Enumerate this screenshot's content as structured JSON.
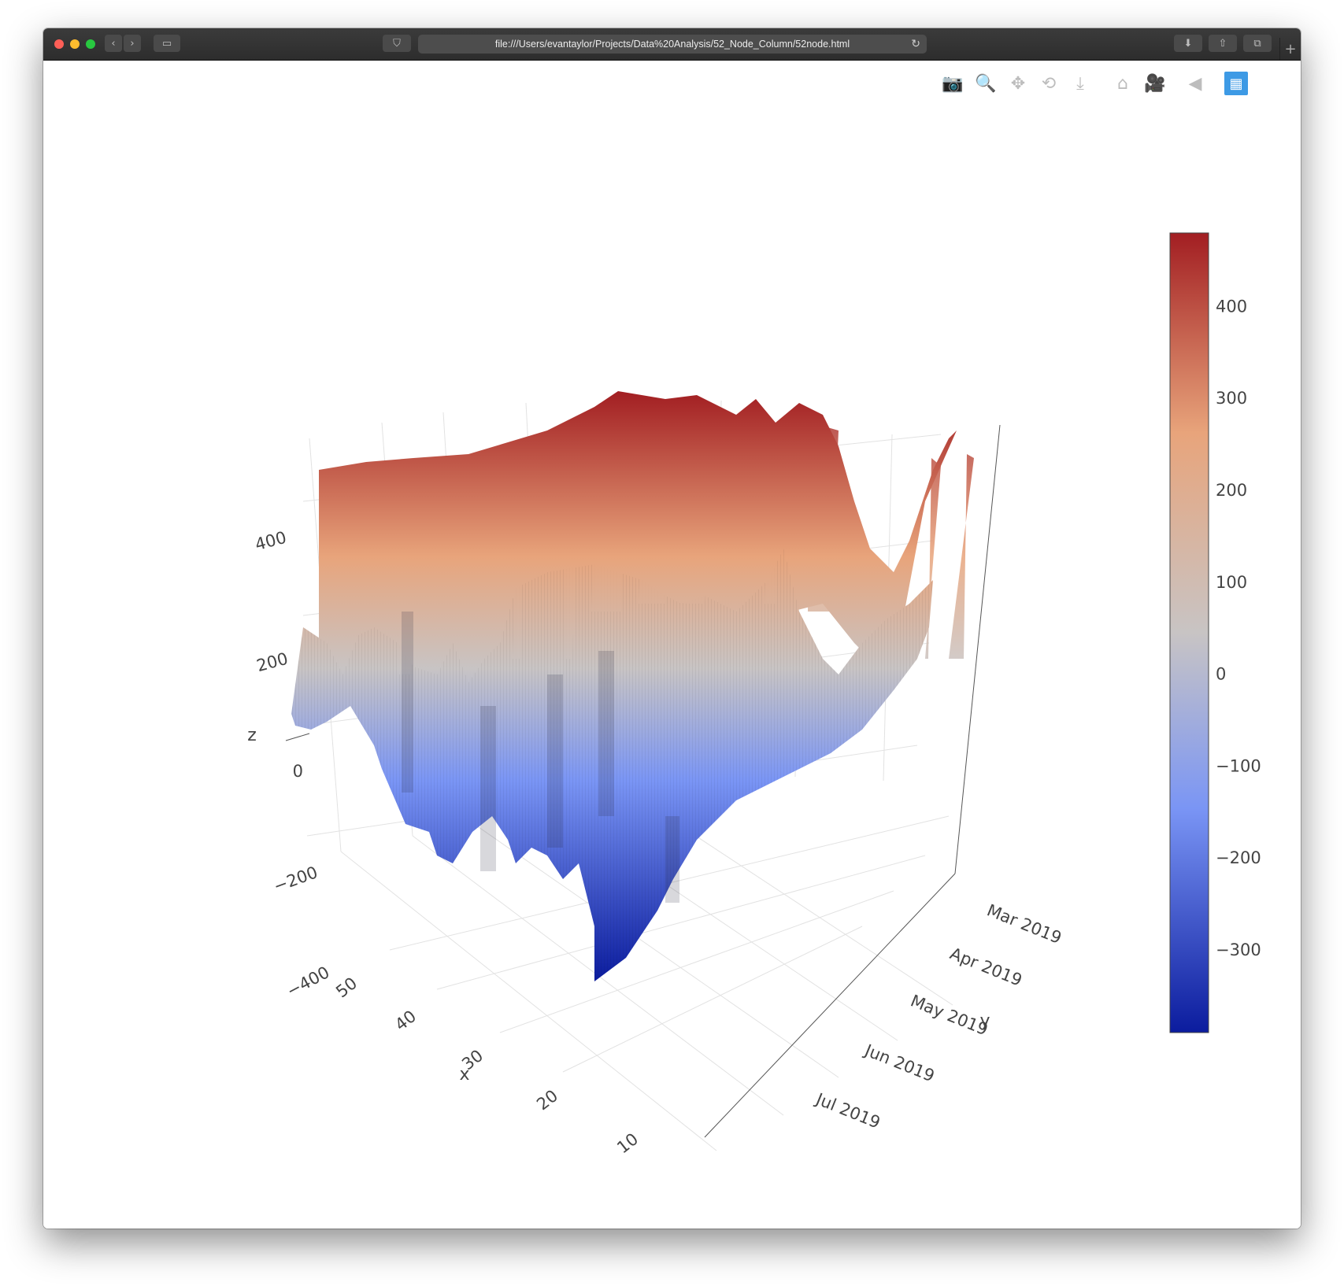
{
  "browser": {
    "url": "file:///Users/evantaylor/Projects/Data%20Analysis/52_Node_Column/52node.html"
  },
  "modebar": {
    "buttons": [
      {
        "name": "camera-icon",
        "glyph": "📷"
      },
      {
        "name": "zoom-icon",
        "glyph": "🔍"
      },
      {
        "name": "pan-icon",
        "glyph": "✥"
      },
      {
        "name": "orbit-rotation-icon",
        "glyph": "⟲"
      },
      {
        "name": "turntable-rotation-icon",
        "glyph": "⤓"
      },
      {
        "name": "reset-camera-home-icon",
        "glyph": "⌂"
      },
      {
        "name": "last-save-camera-icon",
        "glyph": "🎥"
      },
      {
        "name": "toggle-spike-lines-icon",
        "glyph": "◀"
      },
      {
        "name": "plotly-logo-icon",
        "glyph": "▦"
      }
    ]
  },
  "chart_data": {
    "type": "surface",
    "colorscale": "coolwarm",
    "colors": {
      "low": "#0b1c9e",
      "mid_low": "#7a95f5",
      "mid": "#c8c4c4",
      "mid_high": "#e8a47b",
      "high": "#a21e22"
    },
    "axes": {
      "x": {
        "label": "x",
        "range": [
          1,
          52
        ],
        "ticks": [
          "10",
          "20",
          "30",
          "40",
          "50"
        ]
      },
      "y": {
        "label": "y",
        "ticks": [
          "Mar 2019",
          "Apr 2019",
          "May 2019",
          "Jun 2019",
          "Jul 2019"
        ]
      },
      "z": {
        "label": "z",
        "ticks": [
          "400",
          "200",
          "0",
          "−200",
          "−400"
        ],
        "range": [
          -400,
          480
        ]
      }
    },
    "colorbar": {
      "ticks": [
        "400",
        "300",
        "200",
        "100",
        "0",
        "−100",
        "−200",
        "−300"
      ],
      "range": [
        -390,
        480
      ]
    },
    "profile_x_near": {
      "x": [
        10,
        15,
        20,
        25,
        30,
        35,
        40,
        45,
        50
      ],
      "z_top_front": [
        -390,
        -220,
        -170,
        -120,
        -350,
        -320,
        -250,
        20,
        -30
      ]
    }
  }
}
